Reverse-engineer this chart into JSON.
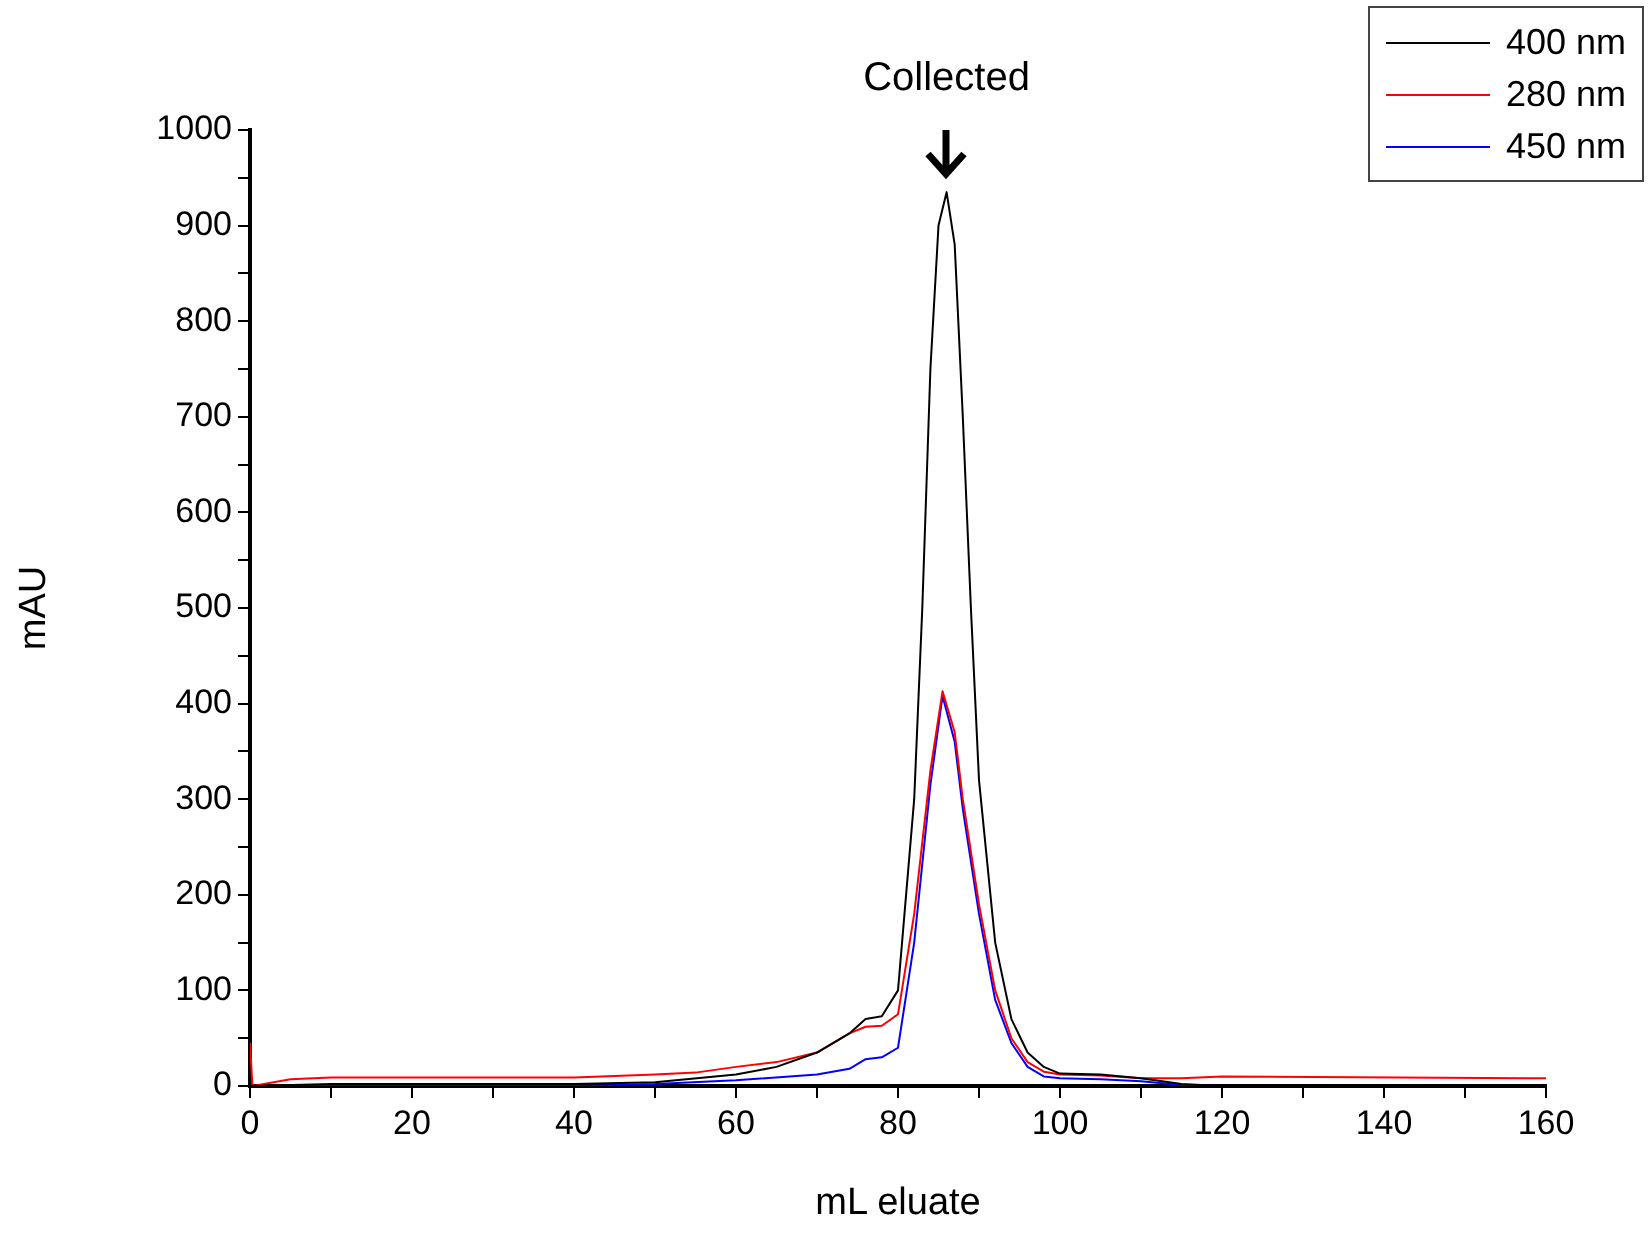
{
  "chart_data": {
    "type": "line",
    "xlabel": "mL eluate",
    "ylabel": "mAU",
    "xlim": [
      0,
      160
    ],
    "ylim": [
      0,
      1000
    ],
    "xticks": [
      0,
      {
        "value": 10,
        "label": null
      },
      20,
      {
        "value": 30,
        "label": null
      },
      40,
      {
        "value": 50,
        "label": null
      },
      60,
      {
        "value": 70,
        "label": null
      },
      80,
      {
        "value": 90,
        "label": null
      },
      100,
      {
        "value": 110,
        "label": null
      },
      120,
      {
        "value": 130,
        "label": null
      },
      140,
      {
        "value": 150,
        "label": null
      },
      160
    ],
    "yticks": [
      0,
      {
        "value": 50,
        "label": null
      },
      100,
      {
        "value": 150,
        "label": null
      },
      200,
      {
        "value": 250,
        "label": null
      },
      300,
      {
        "value": 350,
        "label": null
      },
      400,
      {
        "value": 450,
        "label": null
      },
      500,
      {
        "value": 550,
        "label": null
      },
      600,
      {
        "value": 650,
        "label": null
      },
      700,
      {
        "value": 750,
        "label": null
      },
      800,
      {
        "value": 850,
        "label": null
      },
      900,
      {
        "value": 950,
        "label": null
      },
      1000
    ],
    "grid": false,
    "legend": "top right",
    "marker": "none",
    "line_style": "solid",
    "annotations": [
      {
        "text": "Collected",
        "x": 86,
        "y": 935
      }
    ],
    "series": [
      {
        "name": "400 nm",
        "color": "#000000",
        "x": [
          0,
          10,
          40,
          50,
          60,
          65,
          70,
          74,
          76,
          78,
          80,
          82,
          83,
          84,
          85,
          86,
          87,
          88,
          89,
          90,
          92,
          94,
          96,
          98,
          100,
          105,
          110,
          115,
          120,
          160
        ],
        "values": [
          0,
          2,
          2,
          4,
          12,
          20,
          35,
          55,
          70,
          73,
          100,
          300,
          500,
          750,
          900,
          935,
          880,
          700,
          500,
          320,
          150,
          70,
          35,
          20,
          13,
          12,
          8,
          2,
          0,
          0
        ]
      },
      {
        "name": "280 nm",
        "color": "#ff0000",
        "x": [
          0,
          0.3,
          5,
          10,
          40,
          50,
          55,
          60,
          65,
          70,
          74,
          76,
          78,
          80,
          82,
          84,
          85.5,
          87,
          88,
          90,
          92,
          94,
          96,
          98,
          100,
          105,
          110,
          115,
          120,
          160
        ],
        "values": [
          45,
          0,
          7,
          9,
          9,
          12,
          14,
          20,
          25,
          35,
          55,
          62,
          63,
          75,
          180,
          330,
          413,
          370,
          300,
          190,
          100,
          50,
          25,
          15,
          12,
          11,
          8,
          8,
          10,
          8
        ]
      },
      {
        "name": "450 nm",
        "color": "#0000ff",
        "x": [
          0,
          40,
          50,
          60,
          70,
          74,
          76,
          78,
          80,
          82,
          84,
          85.5,
          87,
          88,
          90,
          92,
          94,
          96,
          98,
          100,
          105,
          110,
          115,
          120,
          160
        ],
        "values": [
          0,
          0,
          2,
          6,
          12,
          18,
          28,
          30,
          40,
          150,
          315,
          408,
          360,
          290,
          180,
          90,
          45,
          20,
          10,
          8,
          7,
          5,
          1,
          0,
          0
        ]
      }
    ]
  }
}
